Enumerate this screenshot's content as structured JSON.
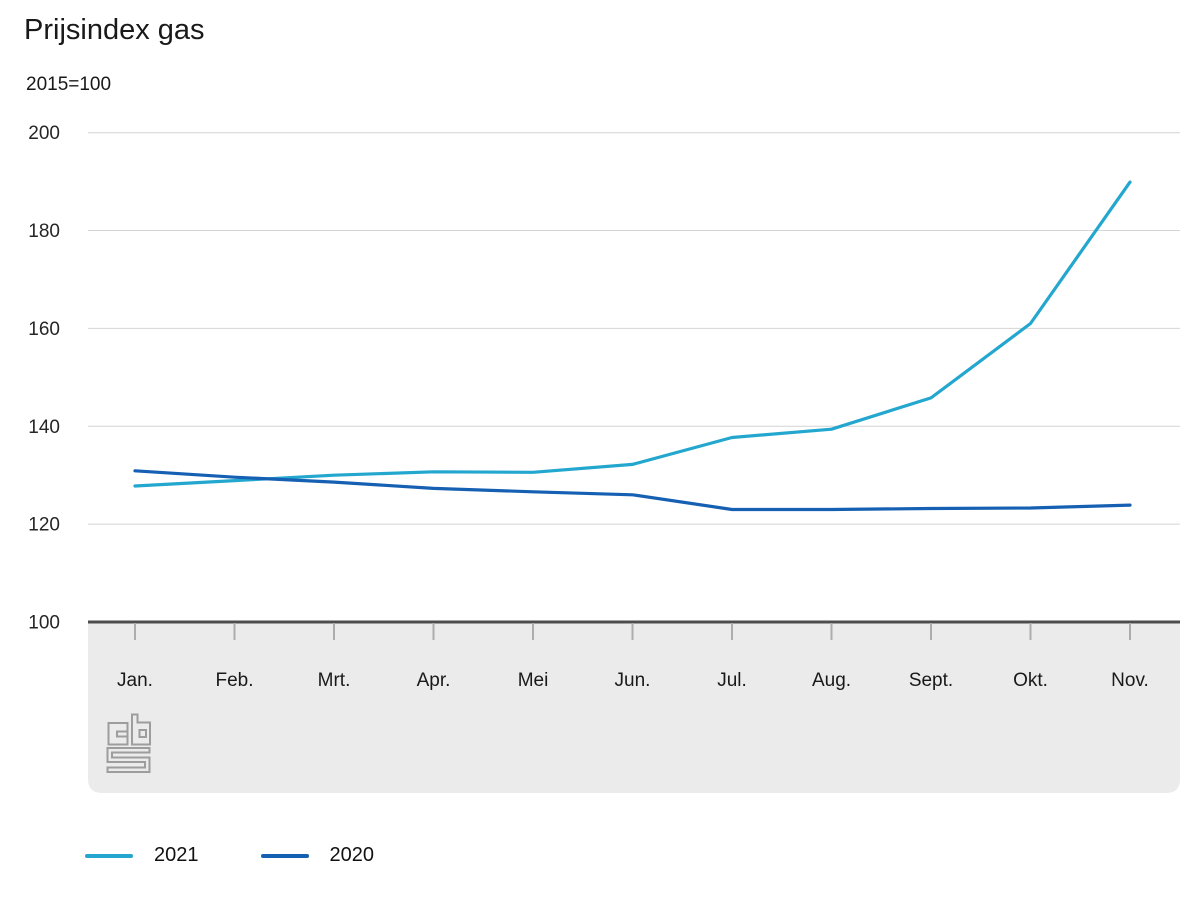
{
  "chart_data": {
    "type": "line",
    "title": "Prijsindex gas",
    "subtitle": "2015=100",
    "categories": [
      "Jan.",
      "Feb.",
      "Mrt.",
      "Apr.",
      "Mei",
      "Jun.",
      "Jul.",
      "Aug.",
      "Sept.",
      "Okt.",
      "Nov."
    ],
    "y_ticks": [
      100,
      120,
      140,
      160,
      180,
      200
    ],
    "ylim": [
      100,
      200
    ],
    "grid": "horizontal-on",
    "legend_position": "bottom-left",
    "series": [
      {
        "name": "2021",
        "color": "#23a7ce",
        "values": [
          127.8,
          128.9,
          130.0,
          130.7,
          130.6,
          132.2,
          137.7,
          139.4,
          145.8,
          161.0,
          189.9
        ]
      },
      {
        "name": "2020",
        "color": "#1560b2",
        "values": [
          130.9,
          129.6,
          128.6,
          127.3,
          126.6,
          126.0,
          123.0,
          123.0,
          123.2,
          123.3,
          123.9
        ]
      }
    ],
    "colors": {
      "gridline": "#d4d4d4",
      "axis_line": "#4d4d4d",
      "plot_band": "#ebebeb",
      "tick_mark": "#adadad",
      "logo_gray": "#9d9d9d"
    }
  }
}
